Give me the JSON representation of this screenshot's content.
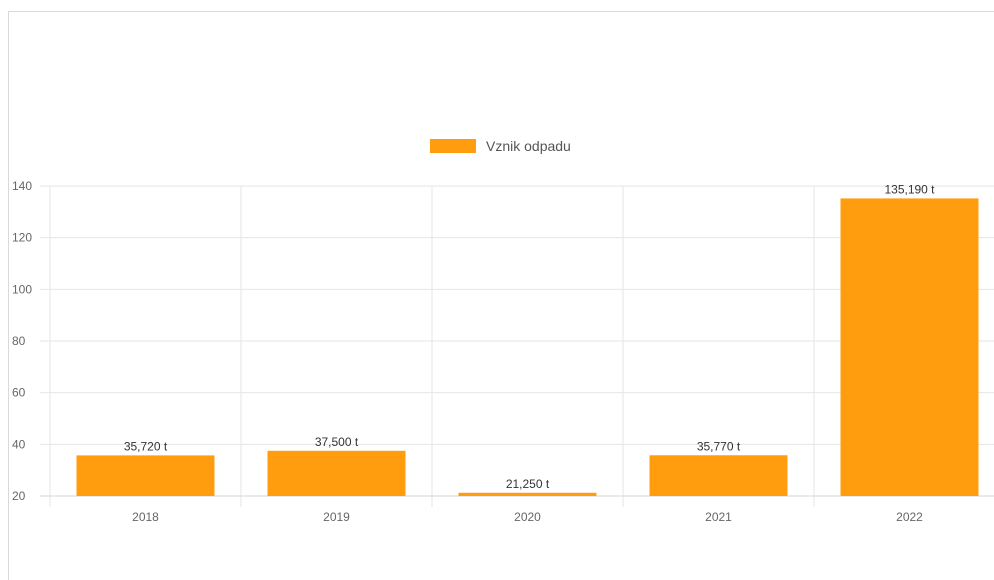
{
  "chart_data": {
    "type": "bar",
    "categories": [
      "2018",
      "2019",
      "2020",
      "2021",
      "2022"
    ],
    "series": [
      {
        "name": "Vznik odpadu",
        "values": [
          35.72,
          37.5,
          21.25,
          35.77,
          135.19
        ],
        "labels": [
          "35,720 t",
          "37,500 t",
          "21,250 t",
          "35,770 t",
          "135,190 t"
        ]
      }
    ],
    "y_ticks": [
      "20",
      "40",
      "60",
      "80",
      "100",
      "120",
      "140"
    ],
    "ylim": [
      20,
      140
    ],
    "grid": true,
    "legend": "top-center",
    "colors": {
      "bar": "#ff9d0f",
      "grid": "#e6e6e6",
      "axis_text": "#666666"
    }
  }
}
